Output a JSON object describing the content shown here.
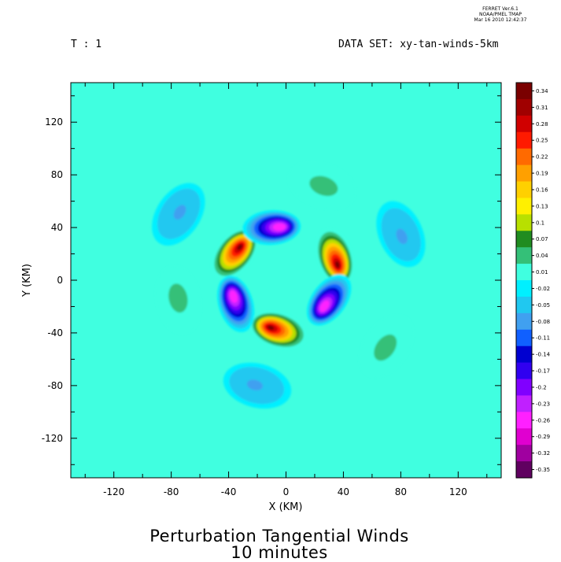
{
  "header": {
    "stamp": [
      "FERRET  Ver.6.1",
      "NOAA/PMEL TMAP",
      "Mar 16 2010 12:42:37"
    ],
    "time_label": "T : 1",
    "dataset_label": "DATA SET: xy-tan-winds-5km"
  },
  "title": {
    "line1": "Perturbation Tangential Winds",
    "line2": "10 minutes"
  },
  "chart_data": {
    "type": "heatmap",
    "title": "Perturbation Tangential Winds",
    "subtitle": "10 minutes",
    "xlabel": "X (KM)",
    "ylabel": "Y (KM)",
    "xlim": [
      -150,
      150
    ],
    "ylim": [
      -150,
      150
    ],
    "x_ticks": [
      -120,
      -80,
      -40,
      0,
      40,
      80,
      120
    ],
    "y_ticks": [
      120,
      80,
      40,
      0,
      -40,
      -80,
      -120
    ],
    "grid": false,
    "colorbar": {
      "labels": [
        "0.34",
        "0.31",
        "0.28",
        "0.25",
        "0.22",
        "0.19",
        "0.16",
        "0.13",
        "0.1",
        "0.07",
        "0.04",
        "0.01",
        "-0.02",
        "-0.05",
        "-0.08",
        "-0.11",
        "-0.14",
        "-0.17",
        "-0.2",
        "-0.23",
        "-0.26",
        "-0.29",
        "-0.32",
        "-0.35"
      ],
      "colors": [
        "#7a0000",
        "#a00000",
        "#d00000",
        "#ff1a00",
        "#ff6a00",
        "#ffa000",
        "#ffd000",
        "#fff000",
        "#b8e000",
        "#208c20",
        "#34c078",
        "#40ffe0",
        "#00f0ff",
        "#20c8f0",
        "#40a0f0",
        "#1060ff",
        "#0000d0",
        "#3000f0",
        "#8000ff",
        "#c020ff",
        "#ff20ff",
        "#e000d0",
        "#a000a0",
        "#600060"
      ]
    },
    "features": [
      {
        "kind": "max",
        "x": -36,
        "y": 20,
        "value": 0.34
      },
      {
        "kind": "max",
        "x": 34,
        "y": 18,
        "value": 0.34
      },
      {
        "kind": "max",
        "x": -5,
        "y": -38,
        "value": 0.34
      },
      {
        "kind": "min",
        "x": -10,
        "y": 40,
        "value": -0.26
      },
      {
        "kind": "min",
        "x": 30,
        "y": -15,
        "value": -0.26
      },
      {
        "kind": "min",
        "x": -35,
        "y": -18,
        "value": -0.26
      },
      {
        "kind": "max",
        "x": 25,
        "y": 72,
        "value": 0.05
      },
      {
        "kind": "max",
        "x": 70,
        "y": -50,
        "value": 0.05
      },
      {
        "kind": "max",
        "x": -75,
        "y": -15,
        "value": 0.05
      },
      {
        "kind": "min",
        "x": -75,
        "y": 50,
        "value": -0.06
      },
      {
        "kind": "min",
        "x": 80,
        "y": 35,
        "value": -0.06
      },
      {
        "kind": "min",
        "x": -20,
        "y": -80,
        "value": -0.06
      }
    ]
  }
}
